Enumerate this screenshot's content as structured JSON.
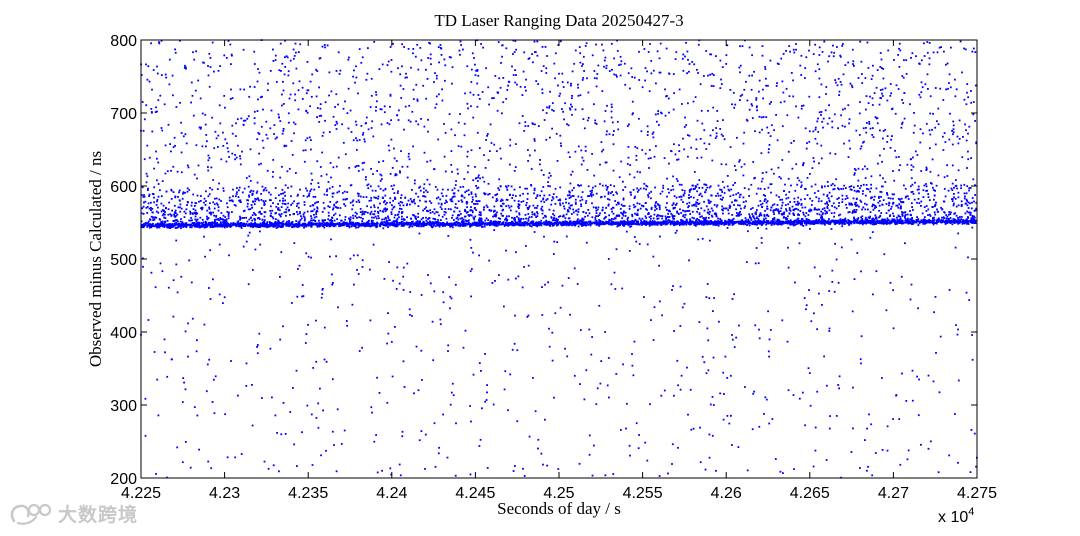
{
  "chart_data": {
    "type": "scatter",
    "title": "TD Laser Ranging Data 20250427-3",
    "xlabel": "Seconds of day / s",
    "ylabel": "Observed minus Calculated / ns",
    "x_multiplier_label": "x 10",
    "x_multiplier_exponent": "4",
    "xlim": [
      42250,
      42750
    ],
    "ylim": [
      200,
      800
    ],
    "x_ticks": [
      42250,
      42300,
      42350,
      42400,
      42450,
      42500,
      42550,
      42600,
      42650,
      42700,
      42750
    ],
    "x_tick_labels": [
      "4.225",
      "4.23",
      "4.235",
      "4.24",
      "4.245",
      "4.25",
      "4.255",
      "4.26",
      "4.265",
      "4.27",
      "4.275"
    ],
    "y_ticks": [
      200,
      300,
      400,
      500,
      600,
      700,
      800
    ],
    "y_tick_labels": [
      "200",
      "300",
      "400",
      "500",
      "600",
      "700",
      "800"
    ],
    "grid": false,
    "marker_color": "#0000ff",
    "series": [
      {
        "description_of_points": "approx. 8000 returns: dense signal band near 545-552 ns rising slightly with time, plus uniform background noise across full range, denser above 550 ns",
        "signal_band": {
          "x_start": 42250,
          "x_end": 42750,
          "y_start": 545.5,
          "y_end": 551.0,
          "spread_ns": 1.5,
          "count": 2600
        },
        "near_band_scatter": {
          "y_min": 548,
          "y_max": 600,
          "count": 2400
        },
        "noise_above": {
          "y_min": 550,
          "y_max": 800,
          "count": 2000
        },
        "noise_below": {
          "y_min": 200,
          "y_max": 545,
          "count": 650
        }
      }
    ]
  },
  "watermark": {
    "text": "大数跨境"
  }
}
